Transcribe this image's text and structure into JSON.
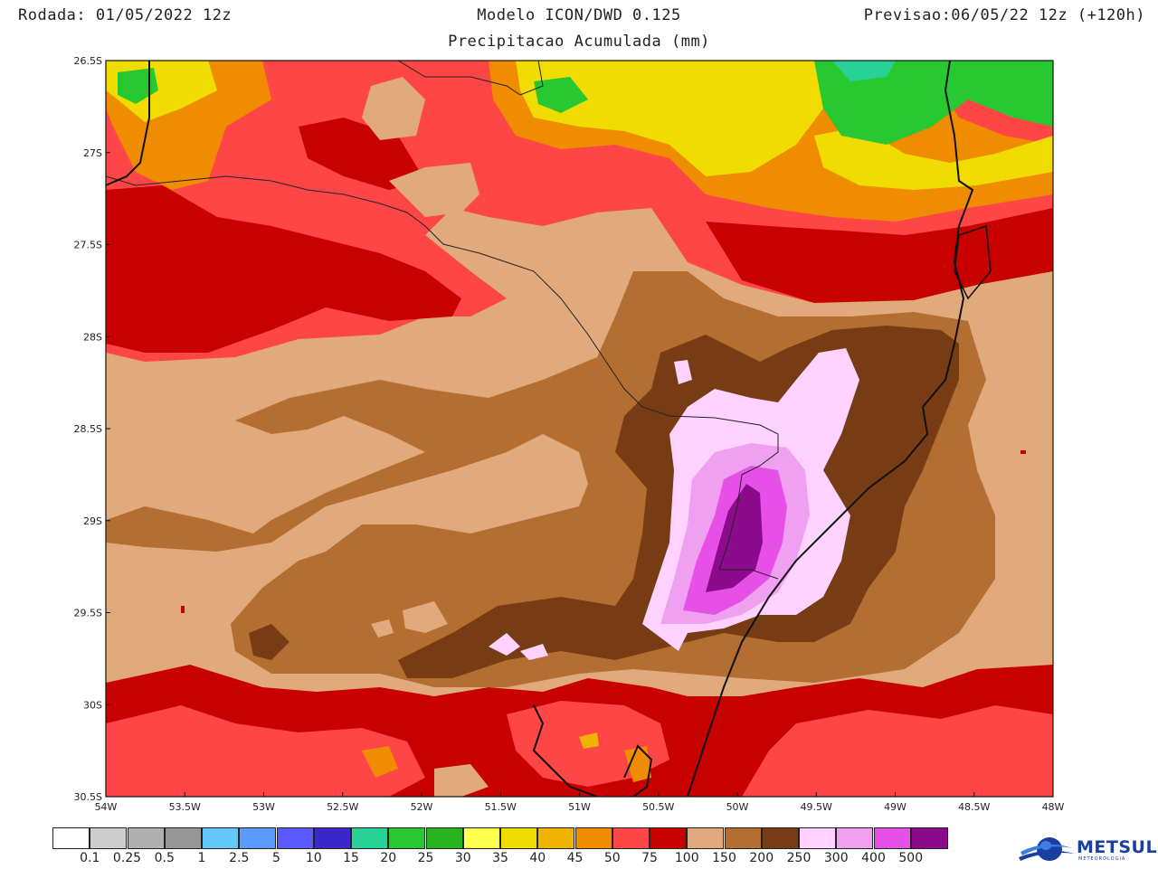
{
  "header": {
    "left": "Rodada: 01/05/2022 12z",
    "title": "Modelo ICON/DWD 0.125",
    "subtitle": "Precipitacao Acumulada (mm)",
    "right": "Previsao:06/05/22 12z (+120h)"
  },
  "axes": {
    "lon_labels": [
      "54W",
      "53.5W",
      "53W",
      "52.5W",
      "52W",
      "51.5W",
      "51W",
      "50.5W",
      "50W",
      "49.5W",
      "49W",
      "48.5W",
      "48W"
    ],
    "lat_labels": [
      "26.5S",
      "27S",
      "27.5S",
      "28S",
      "28.5S",
      "29S",
      "29.5S",
      "30S",
      "30.5S"
    ]
  },
  "legend": {
    "colors": [
      "#ffffff",
      "#cdcdcd",
      "#b0b0b0",
      "#969696",
      "#64c8ff",
      "#5a9bff",
      "#5a5aff",
      "#3c28c8",
      "#28d296",
      "#28c832",
      "#28b41e",
      "#ffff50",
      "#f0dc00",
      "#f0b400",
      "#f08c00",
      "#ff4646",
      "#c80000",
      "#e1aa7d",
      "#b46e32",
      "#783c14",
      "#ffd2ff",
      "#f0a0f0",
      "#e650e6",
      "#8c0a8c"
    ],
    "labels": [
      "0.1",
      "0.25",
      "0.5",
      "1",
      "2.5",
      "5",
      "10",
      "15",
      "20",
      "25",
      "30",
      "35",
      "40",
      "45",
      "50",
      "75",
      "100",
      "150",
      "200",
      "250",
      "300",
      "400",
      "500"
    ]
  },
  "logo": {
    "name": "METSUL",
    "tagline": "METEOROLOGIA"
  }
}
